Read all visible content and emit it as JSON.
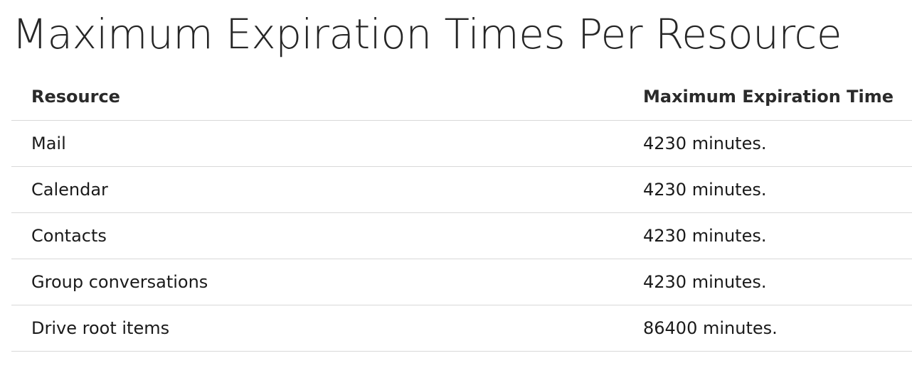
{
  "page": {
    "title": "Maximum Expiration Times Per Resource"
  },
  "table": {
    "headers": {
      "resource": "Resource",
      "max_expiration_time": "Maximum Expiration Time"
    },
    "rows": [
      {
        "resource": "Mail",
        "max_expiration_time": "4230 minutes."
      },
      {
        "resource": "Calendar",
        "max_expiration_time": "4230 minutes."
      },
      {
        "resource": "Contacts",
        "max_expiration_time": "4230 minutes."
      },
      {
        "resource": "Group conversations",
        "max_expiration_time": "4230 minutes."
      },
      {
        "resource": "Drive root items",
        "max_expiration_time": "86400 minutes."
      }
    ]
  }
}
